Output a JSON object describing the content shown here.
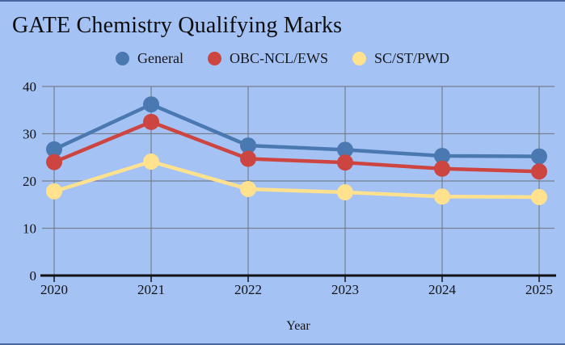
{
  "canvas": {
    "background": "#a4c2f4",
    "edge_line_color": "#4a66a0"
  },
  "header": {
    "title": "GATE Chemistry Qualifying Marks"
  },
  "chart_data": {
    "type": "line",
    "title": "GATE Chemistry Qualifying Marks",
    "xlabel": "Year",
    "ylabel": "",
    "categories": [
      "2020",
      "2021",
      "2022",
      "2023",
      "2024",
      "2025"
    ],
    "series": [
      {
        "name": "General",
        "color": "#4a79b2",
        "values": [
          26.7,
          36.2,
          27.5,
          26.6,
          25.3,
          25.2
        ]
      },
      {
        "name": "OBC-NCL/EWS",
        "color": "#cd4540",
        "values": [
          24.0,
          32.5,
          24.7,
          23.9,
          22.6,
          22.0
        ]
      },
      {
        "name": "SC/ST/PWD",
        "color": "#ffe18e",
        "values": [
          17.8,
          24.1,
          18.3,
          17.6,
          16.7,
          16.6
        ]
      }
    ],
    "ylim": [
      0,
      40
    ],
    "yticks": [
      0,
      10,
      20,
      30,
      40
    ],
    "grid": true,
    "legend_position": "top",
    "marker": "circle",
    "axis_color": "#121214",
    "gridline_color": "#70757d"
  }
}
